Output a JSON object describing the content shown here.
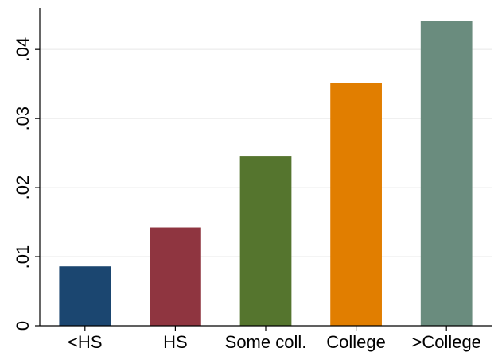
{
  "chart_data": {
    "type": "bar",
    "title": "",
    "xlabel": "",
    "ylabel": "",
    "categories": [
      "<HS",
      "HS",
      "Some coll.",
      "College",
      ">College"
    ],
    "values": [
      0.0086,
      0.0142,
      0.0246,
      0.0351,
      0.0441
    ],
    "colors": [
      "#1b4670",
      "#8f3540",
      "#55752e",
      "#e17e00",
      "#6a8c7e"
    ],
    "ylim": [
      0,
      0.046
    ],
    "yticks": [
      0,
      0.01,
      0.02,
      0.03,
      0.04
    ],
    "ytick_labels": [
      "0",
      ".01",
      ".02",
      ".03",
      ".04"
    ],
    "grid": true,
    "legend": "none"
  }
}
